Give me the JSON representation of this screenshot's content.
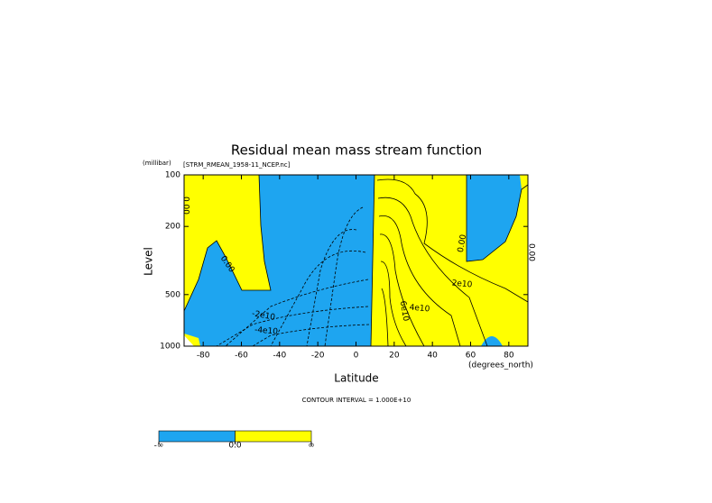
{
  "chart_data": {
    "type": "contour",
    "title": "Residual mean mass stream function",
    "subtitle": "[STRM_RMEAN_1958-11_NCEP.nc]",
    "x_label": "Latitude",
    "x_units": "(degrees_north)",
    "y_label": "Level",
    "y_units": "(millibar)",
    "xlim": [
      -90,
      90
    ],
    "xticks": [
      -80,
      -60,
      -40,
      -20,
      0,
      20,
      40,
      60,
      80
    ],
    "ylim": [
      1000,
      100
    ],
    "yticks": [
      100,
      200,
      500,
      1000
    ],
    "log_scale_y": true,
    "annotations": [
      "0.00",
      "0.00",
      "-2e10",
      "-4e10",
      "2e10",
      "4e10",
      "6e10",
      "0.00",
      "0.00"
    ],
    "footnote": "CONTOUR INTERVAL = 1.000E+10",
    "colorbar": {
      "colors": [
        "#1ea5f0",
        "#ffff00"
      ],
      "labels": [
        "-∞",
        "0.0",
        "∞"
      ]
    }
  }
}
